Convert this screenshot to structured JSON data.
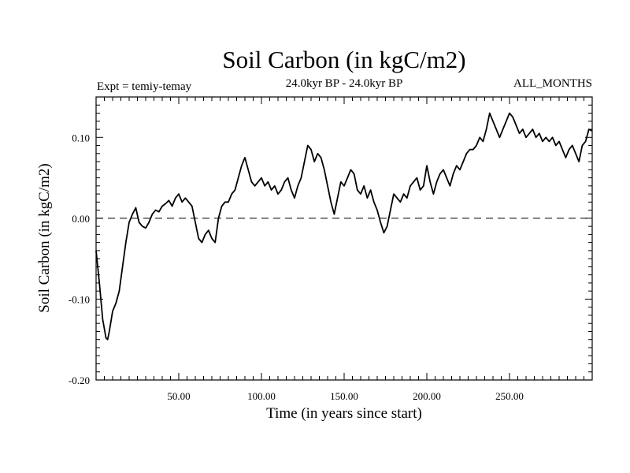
{
  "chart_data": {
    "type": "line",
    "title": "Soil Carbon (in kgC/m2)",
    "subtitle_left": "Expt = temiy-temay",
    "subtitle_center": "24.0kyr BP - 24.0kyr BP",
    "subtitle_right": "ALL_MONTHS",
    "xlabel": "Time (in years since start)",
    "ylabel": "Soil Carbon (in kgC/m2)",
    "xlim": [
      0,
      300
    ],
    "ylim": [
      -0.2,
      0.15
    ],
    "x_ticks": [
      50,
      100,
      150,
      200,
      250
    ],
    "x_tick_labels": [
      "50.00",
      "100.00",
      "150.00",
      "200.00",
      "250.00"
    ],
    "y_ticks": [
      -0.2,
      -0.1,
      0.0,
      0.1
    ],
    "y_tick_labels": [
      "-0.20",
      "-0.10",
      "0.00",
      "0.10"
    ],
    "reference_line": {
      "y": 0.0,
      "style": "dashed"
    },
    "grid": false,
    "series": [
      {
        "color": "#000000",
        "x": [
          0,
          2,
          4,
          6,
          7,
          8,
          10,
          12,
          14,
          16,
          18,
          20,
          22,
          24,
          26,
          28,
          30,
          32,
          34,
          36,
          38,
          40,
          42,
          44,
          46,
          48,
          50,
          52,
          54,
          56,
          58,
          60,
          62,
          64,
          66,
          68,
          70,
          72,
          74,
          76,
          78,
          80,
          82,
          84,
          86,
          88,
          90,
          92,
          94,
          96,
          98,
          100,
          102,
          104,
          106,
          108,
          110,
          112,
          114,
          116,
          118,
          120,
          122,
          124,
          126,
          128,
          130,
          132,
          134,
          136,
          138,
          140,
          142,
          144,
          146,
          148,
          150,
          152,
          154,
          156,
          158,
          160,
          162,
          164,
          166,
          168,
          170,
          172,
          174,
          176,
          178,
          180,
          182,
          184,
          186,
          188,
          190,
          192,
          194,
          196,
          198,
          200,
          202,
          204,
          206,
          208,
          210,
          212,
          214,
          216,
          218,
          220,
          222,
          224,
          226,
          228,
          230,
          232,
          234,
          236,
          238,
          240,
          242,
          244,
          246,
          248,
          250,
          252,
          254,
          256,
          258,
          260,
          262,
          264,
          266,
          268,
          270,
          272,
          274,
          276,
          278,
          280,
          282,
          284,
          286,
          288,
          290,
          292,
          294,
          296,
          298,
          300
        ],
        "y": [
          -0.04,
          -0.08,
          -0.125,
          -0.148,
          -0.15,
          -0.14,
          -0.115,
          -0.105,
          -0.09,
          -0.06,
          -0.03,
          -0.005,
          0.005,
          0.013,
          -0.005,
          -0.01,
          -0.012,
          -0.005,
          0.005,
          0.01,
          0.008,
          0.015,
          0.018,
          0.022,
          0.015,
          0.025,
          0.03,
          0.02,
          0.025,
          0.02,
          0.015,
          -0.005,
          -0.025,
          -0.03,
          -0.02,
          -0.015,
          -0.025,
          -0.03,
          0.0,
          0.015,
          0.02,
          0.02,
          0.03,
          0.035,
          0.05,
          0.065,
          0.075,
          0.06,
          0.045,
          0.04,
          0.045,
          0.05,
          0.04,
          0.045,
          0.035,
          0.04,
          0.03,
          0.035,
          0.045,
          0.05,
          0.035,
          0.025,
          0.04,
          0.05,
          0.07,
          0.09,
          0.085,
          0.07,
          0.08,
          0.075,
          0.06,
          0.04,
          0.02,
          0.005,
          0.025,
          0.045,
          0.04,
          0.05,
          0.06,
          0.055,
          0.035,
          0.03,
          0.04,
          0.025,
          0.035,
          0.02,
          0.01,
          -0.005,
          -0.018,
          -0.01,
          0.01,
          0.03,
          0.025,
          0.02,
          0.03,
          0.025,
          0.04,
          0.045,
          0.05,
          0.035,
          0.04,
          0.065,
          0.045,
          0.03,
          0.045,
          0.055,
          0.06,
          0.05,
          0.04,
          0.055,
          0.065,
          0.06,
          0.07,
          0.08,
          0.085,
          0.085,
          0.09,
          0.1,
          0.095,
          0.11,
          0.13,
          0.12,
          0.11,
          0.1,
          0.11,
          0.12,
          0.13,
          0.125,
          0.115,
          0.105,
          0.11,
          0.1,
          0.105,
          0.11,
          0.1,
          0.105,
          0.095,
          0.1,
          0.095,
          0.1,
          0.09,
          0.095,
          0.085,
          0.075,
          0.085,
          0.09,
          0.08,
          0.07,
          0.09,
          0.095,
          0.11,
          0.108
        ]
      }
    ]
  }
}
